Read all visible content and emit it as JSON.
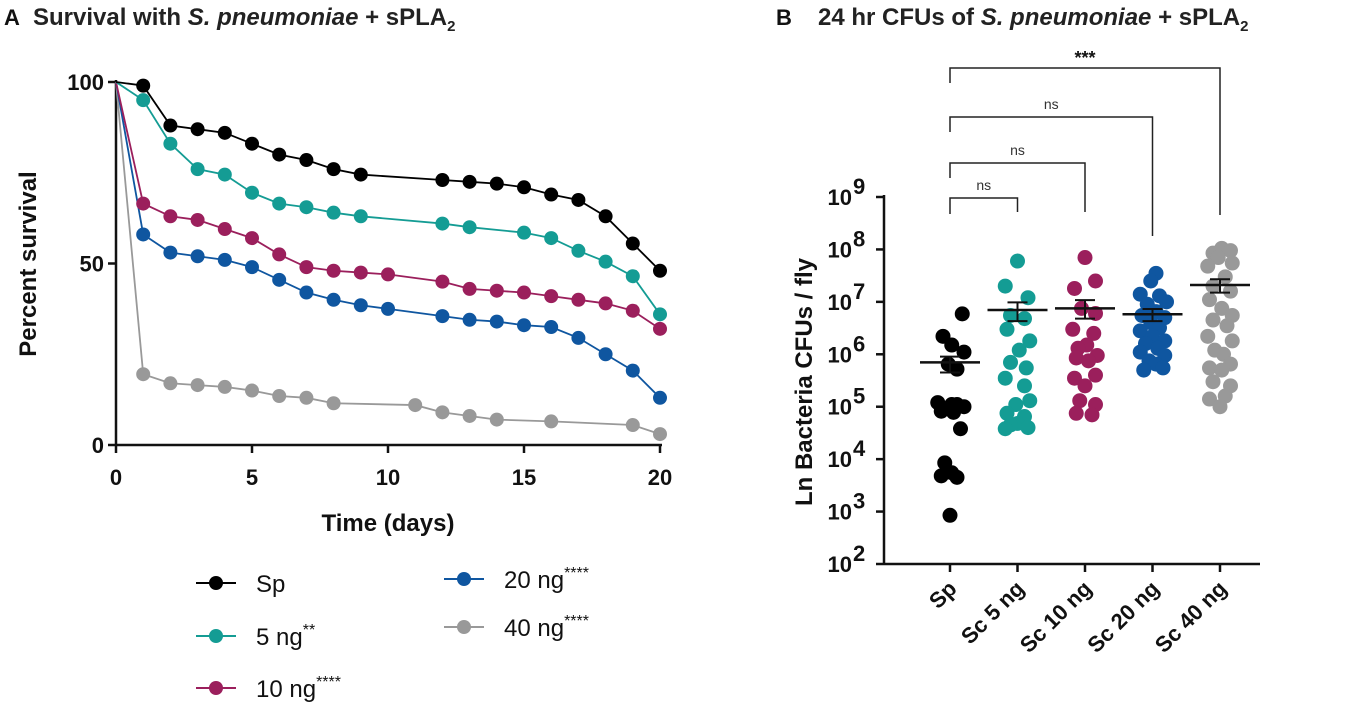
{
  "chart_data": [
    {
      "type": "line",
      "panel_label": "A",
      "title_parts": [
        "Survival with ",
        "S. pneumoniae",
        " + sPLA",
        "2"
      ],
      "xlabel": "Time (days)",
      "ylabel": "Percent survival",
      "xlim": [
        0,
        20
      ],
      "ylim": [
        0,
        100
      ],
      "xticks": [
        0,
        5,
        10,
        15,
        20
      ],
      "yticks": [
        0,
        50,
        100
      ],
      "series": [
        {
          "name": "Sp",
          "sig": "",
          "color": "#000000",
          "x": [
            0,
            1,
            2,
            3,
            4,
            5,
            6,
            7,
            8,
            9,
            12,
            13,
            14,
            15,
            16,
            17,
            18,
            19,
            20
          ],
          "y": [
            100,
            99,
            88,
            87,
            86,
            83,
            80,
            78.5,
            76,
            74.5,
            73,
            72.5,
            72,
            71,
            69,
            67.5,
            63,
            55.5,
            48
          ]
        },
        {
          "name": "5 ng",
          "sig": "**",
          "color": "#149c94",
          "x": [
            0,
            1,
            2,
            3,
            4,
            5,
            6,
            7,
            8,
            9,
            12,
            13,
            15,
            16,
            17,
            18,
            19,
            20
          ],
          "y": [
            100,
            95,
            83,
            76,
            74.5,
            69.5,
            66.5,
            65.5,
            64,
            63,
            61,
            60,
            58.5,
            57,
            53.5,
            50.5,
            46.5,
            36
          ]
        },
        {
          "name": "10 ng",
          "sig": "****",
          "color": "#9b1f5c",
          "x": [
            0,
            1,
            2,
            3,
            4,
            5,
            6,
            7,
            8,
            9,
            10,
            12,
            13,
            14,
            15,
            16,
            17,
            18,
            19,
            20
          ],
          "y": [
            100,
            66.5,
            63,
            62,
            59.5,
            57,
            52.5,
            49,
            48,
            47.5,
            47,
            45,
            43,
            42.5,
            42,
            41,
            40,
            39,
            37,
            32
          ]
        },
        {
          "name": "20 ng",
          "sig": "****",
          "color": "#0f56a0",
          "x": [
            0,
            1,
            2,
            3,
            4,
            5,
            6,
            7,
            8,
            9,
            10,
            12,
            13,
            14,
            15,
            16,
            17,
            18,
            19,
            20
          ],
          "y": [
            100,
            58,
            53,
            52,
            51,
            49,
            45.5,
            42,
            40,
            38.5,
            37.5,
            35.5,
            34.5,
            34,
            33,
            32.5,
            29.5,
            25,
            20.5,
            13
          ]
        },
        {
          "name": "40 ng",
          "sig": "****",
          "color": "#999999",
          "x": [
            0,
            1,
            2,
            3,
            4,
            5,
            6,
            7,
            8,
            11,
            12,
            13,
            14,
            16,
            19,
            20
          ],
          "y": [
            100,
            19.5,
            17,
            16.5,
            16,
            15,
            13.5,
            13,
            11.5,
            11,
            9,
            8,
            7,
            6.5,
            5.5,
            3
          ]
        }
      ]
    },
    {
      "type": "scatter",
      "panel_label": "B",
      "title_parts": [
        "24 hr CFUs of ",
        "S. pneumoniae",
        " + sPLA",
        "2"
      ],
      "ylabel": "Ln Bacteria CFUs / fly",
      "yscale": "log10",
      "ylim_exp": [
        2,
        9
      ],
      "ytick_base": "10",
      "ytick_exps": [
        "2",
        "3",
        "4",
        "5",
        "6",
        "7",
        "8",
        "9"
      ],
      "categories": [
        "Sp",
        "Sc 5 ng",
        "Sc 10 ng",
        "Sc 20 ng",
        "Sc 40 ng"
      ],
      "colors": [
        "#000000",
        "#149c94",
        "#9b1f5c",
        "#0f56a0",
        "#999999"
      ],
      "groups": [
        {
          "mean": 700000,
          "sem_low": 450000,
          "sem_high": 900000,
          "points": [
            [
              0.35,
              5900000.0
            ],
            [
              -0.2,
              2200000.0
            ],
            [
              0.05,
              1500000.0
            ],
            [
              0.4,
              1100000.0
            ],
            [
              -0.05,
              650000.0
            ],
            [
              0.2,
              520000.0
            ],
            [
              -0.35,
              120000.0
            ],
            [
              0.05,
              110000.0
            ],
            [
              0.2,
              110000.0
            ],
            [
              0.4,
              100000.0
            ],
            [
              -0.25,
              82000.0
            ],
            [
              0.1,
              78000.0
            ],
            [
              0.3,
              38000.0
            ],
            [
              -0.15,
              8500.0
            ],
            [
              0.05,
              5500.0
            ],
            [
              -0.25,
              4800.0
            ],
            [
              0.2,
              4500.0
            ],
            [
              0.0,
              850.0
            ]
          ]
        },
        {
          "mean": 7000000,
          "sem_low": 4300000,
          "sem_high": 9800000,
          "points": [
            [
              0.0,
              60000000.0
            ],
            [
              -0.35,
              20000000.0
            ],
            [
              0.3,
              12000000.0
            ],
            [
              -0.2,
              5500000.0
            ],
            [
              0.2,
              4800000.0
            ],
            [
              -0.3,
              3000000.0
            ],
            [
              0.35,
              1800000.0
            ],
            [
              0.05,
              1200000.0
            ],
            [
              -0.2,
              700000.0
            ],
            [
              0.25,
              550000.0
            ],
            [
              -0.35,
              350000.0
            ],
            [
              0.2,
              250000.0
            ],
            [
              0.35,
              130000.0
            ],
            [
              -0.05,
              110000.0
            ],
            [
              -0.3,
              75000.0
            ],
            [
              0.2,
              65000.0
            ],
            [
              0.0,
              48000.0
            ],
            [
              -0.2,
              45000.0
            ],
            [
              0.3,
              40000.0
            ],
            [
              -0.35,
              38000.0
            ]
          ]
        },
        {
          "mean": 7500000,
          "sem_low": 4800000,
          "sem_high": 10800000,
          "points": [
            [
              0.0,
              70000000.0
            ],
            [
              0.3,
              25000000.0
            ],
            [
              -0.3,
              18000000.0
            ],
            [
              -0.1,
              7500000.0
            ],
            [
              0.3,
              6000000.0
            ],
            [
              -0.35,
              3000000.0
            ],
            [
              0.25,
              2500000.0
            ],
            [
              0.05,
              1500000.0
            ],
            [
              -0.2,
              1300000.0
            ],
            [
              0.35,
              950000.0
            ],
            [
              -0.25,
              850000.0
            ],
            [
              0.1,
              750000.0
            ],
            [
              0.3,
              400000.0
            ],
            [
              -0.3,
              350000.0
            ],
            [
              0.0,
              250000.0
            ],
            [
              -0.15,
              130000.0
            ],
            [
              0.3,
              110000.0
            ],
            [
              -0.25,
              75000.0
            ],
            [
              0.2,
              70000.0
            ]
          ]
        },
        {
          "mean": 5800000,
          "sem_low": 4300000,
          "sem_high": 7300000,
          "points": [
            [
              0.1,
              35000000.0
            ],
            [
              -0.05,
              25000000.0
            ],
            [
              -0.35,
              14000000.0
            ],
            [
              0.2,
              13000000.0
            ],
            [
              0.4,
              10000000.0
            ],
            [
              -0.15,
              9000000.0
            ],
            [
              0.1,
              6500000.0
            ],
            [
              -0.3,
              5500000.0
            ],
            [
              0.35,
              5000000.0
            ],
            [
              -0.05,
              4000000.0
            ],
            [
              0.2,
              3200000.0
            ],
            [
              -0.35,
              2800000.0
            ],
            [
              0.0,
              2200000.0
            ],
            [
              0.35,
              1800000.0
            ],
            [
              -0.2,
              1600000.0
            ],
            [
              0.15,
              1300000.0
            ],
            [
              -0.35,
              1100000.0
            ],
            [
              0.35,
              950000.0
            ],
            [
              -0.1,
              750000.0
            ],
            [
              0.1,
              650000.0
            ],
            [
              0.3,
              550000.0
            ],
            [
              -0.25,
              500000.0
            ]
          ]
        },
        {
          "mean": 21000000,
          "sem_low": 15000000,
          "sem_high": 27000000,
          "points": [
            [
              0.05,
              105000000.0
            ],
            [
              0.3,
              95000000.0
            ],
            [
              -0.2,
              85000000.0
            ],
            [
              -0.05,
              70000000.0
            ],
            [
              0.35,
              55000000.0
            ],
            [
              -0.35,
              48000000.0
            ],
            [
              0.15,
              30000000.0
            ],
            [
              -0.2,
              20000000.0
            ],
            [
              0.3,
              16000000.0
            ],
            [
              -0.3,
              11000000.0
            ],
            [
              0.05,
              7500000.0
            ],
            [
              0.35,
              5500000.0
            ],
            [
              -0.2,
              4500000.0
            ],
            [
              0.2,
              3500000.0
            ],
            [
              -0.35,
              2200000.0
            ],
            [
              0.35,
              1800000.0
            ],
            [
              -0.15,
              1200000.0
            ],
            [
              0.1,
              1000000.0
            ],
            [
              0.3,
              650000.0
            ],
            [
              -0.3,
              550000.0
            ],
            [
              0.05,
              500000.0
            ],
            [
              -0.2,
              300000.0
            ],
            [
              0.3,
              250000.0
            ],
            [
              0.15,
              160000.0
            ],
            [
              -0.3,
              140000.0
            ],
            [
              0.0,
              100000.0
            ]
          ]
        }
      ],
      "comparisons": [
        {
          "from": 0,
          "to": 1,
          "label": "ns",
          "level": 0
        },
        {
          "from": 0,
          "to": 2,
          "label": "ns",
          "level": 1
        },
        {
          "from": 0,
          "to": 3,
          "label": "ns",
          "level": 2
        },
        {
          "from": 0,
          "to": 4,
          "label": "***",
          "level": 3
        }
      ]
    }
  ]
}
